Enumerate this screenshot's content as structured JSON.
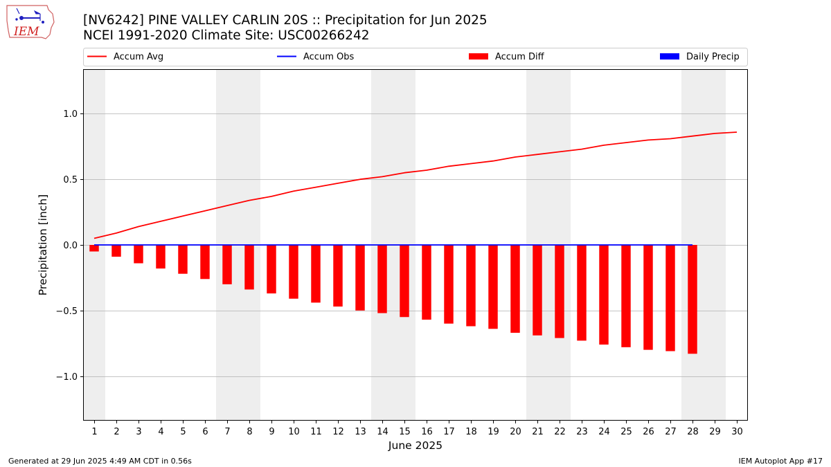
{
  "logo": {
    "text": "IEM"
  },
  "title": {
    "line1": "[NV6242] PINE VALLEY CARLIN 20S :: Precipitation for Jun 2025",
    "line2": "NCEI 1991-2020 Climate Site: USC00266242"
  },
  "footer": {
    "left": "Generated at 29 Jun 2025 4:49 AM CDT in 0.56s",
    "right": "IEM Autoplot App #17"
  },
  "colors": {
    "accum_avg": "#ff0000",
    "accum_obs": "#0000ff",
    "accum_diff": "#ff0000",
    "daily_precip": "#0000ff",
    "weekend_shade": "#eeeeee",
    "grid": "#b0b0b0"
  },
  "chart_data": {
    "type": "bar",
    "xlabel": "June 2025",
    "ylabel": "Precipitation [inch]",
    "xlim": [
      0.5,
      30.5
    ],
    "ylim": [
      -1.34,
      1.34
    ],
    "x_ticks": [
      "1",
      "2",
      "3",
      "4",
      "5",
      "6",
      "7",
      "8",
      "9",
      "10",
      "11",
      "12",
      "13",
      "14",
      "15",
      "16",
      "17",
      "18",
      "19",
      "20",
      "21",
      "22",
      "23",
      "24",
      "25",
      "26",
      "27",
      "28",
      "29",
      "30"
    ],
    "y_ticks": [
      {
        "value": 1.0,
        "label": "1.0"
      },
      {
        "value": 0.5,
        "label": "0.5"
      },
      {
        "value": 0.0,
        "label": "0.0"
      },
      {
        "value": -0.5,
        "label": "−0.5"
      },
      {
        "value": -1.0,
        "label": "−1.0"
      }
    ],
    "grid": "horizontal",
    "legend_position": "top",
    "weekend_spans": [
      [
        0.5,
        1.5
      ],
      [
        6.5,
        8.5
      ],
      [
        13.5,
        15.5
      ],
      [
        20.5,
        22.5
      ],
      [
        27.5,
        29.5
      ]
    ],
    "series": [
      {
        "name": "Accum Avg",
        "kind": "line",
        "x": [
          1,
          2,
          3,
          4,
          5,
          6,
          7,
          8,
          9,
          10,
          11,
          12,
          13,
          14,
          15,
          16,
          17,
          18,
          19,
          20,
          21,
          22,
          23,
          24,
          25,
          26,
          27,
          28,
          29,
          30
        ],
        "values": [
          0.05,
          0.09,
          0.14,
          0.18,
          0.22,
          0.26,
          0.3,
          0.34,
          0.37,
          0.41,
          0.44,
          0.47,
          0.5,
          0.52,
          0.55,
          0.57,
          0.6,
          0.62,
          0.64,
          0.67,
          0.69,
          0.71,
          0.73,
          0.76,
          0.78,
          0.8,
          0.81,
          0.83,
          0.85,
          0.86
        ]
      },
      {
        "name": "Accum Obs",
        "kind": "line",
        "x": [
          1,
          2,
          3,
          4,
          5,
          6,
          7,
          8,
          9,
          10,
          11,
          12,
          13,
          14,
          15,
          16,
          17,
          18,
          19,
          20,
          21,
          22,
          23,
          24,
          25,
          26,
          27,
          28
        ],
        "values": [
          0,
          0,
          0,
          0,
          0,
          0,
          0,
          0,
          0,
          0,
          0,
          0,
          0,
          0,
          0,
          0,
          0,
          0,
          0,
          0,
          0,
          0,
          0,
          0,
          0,
          0,
          0,
          0
        ]
      },
      {
        "name": "Accum Diff",
        "kind": "bar",
        "x": [
          1,
          2,
          3,
          4,
          5,
          6,
          7,
          8,
          9,
          10,
          11,
          12,
          13,
          14,
          15,
          16,
          17,
          18,
          19,
          20,
          21,
          22,
          23,
          24,
          25,
          26,
          27,
          28
        ],
        "values": [
          -0.05,
          -0.09,
          -0.14,
          -0.18,
          -0.22,
          -0.26,
          -0.3,
          -0.34,
          -0.37,
          -0.41,
          -0.44,
          -0.47,
          -0.5,
          -0.52,
          -0.55,
          -0.57,
          -0.6,
          -0.62,
          -0.64,
          -0.67,
          -0.69,
          -0.71,
          -0.73,
          -0.76,
          -0.78,
          -0.8,
          -0.81,
          -0.83
        ]
      },
      {
        "name": "Daily Precip",
        "kind": "bar",
        "x": [
          1,
          2,
          3,
          4,
          5,
          6,
          7,
          8,
          9,
          10,
          11,
          12,
          13,
          14,
          15,
          16,
          17,
          18,
          19,
          20,
          21,
          22,
          23,
          24,
          25,
          26,
          27,
          28
        ],
        "values": [
          0,
          0,
          0,
          0,
          0,
          0,
          0,
          0,
          0,
          0,
          0,
          0,
          0,
          0,
          0,
          0,
          0,
          0,
          0,
          0,
          0,
          0,
          0,
          0,
          0,
          0,
          0,
          0
        ]
      }
    ]
  }
}
